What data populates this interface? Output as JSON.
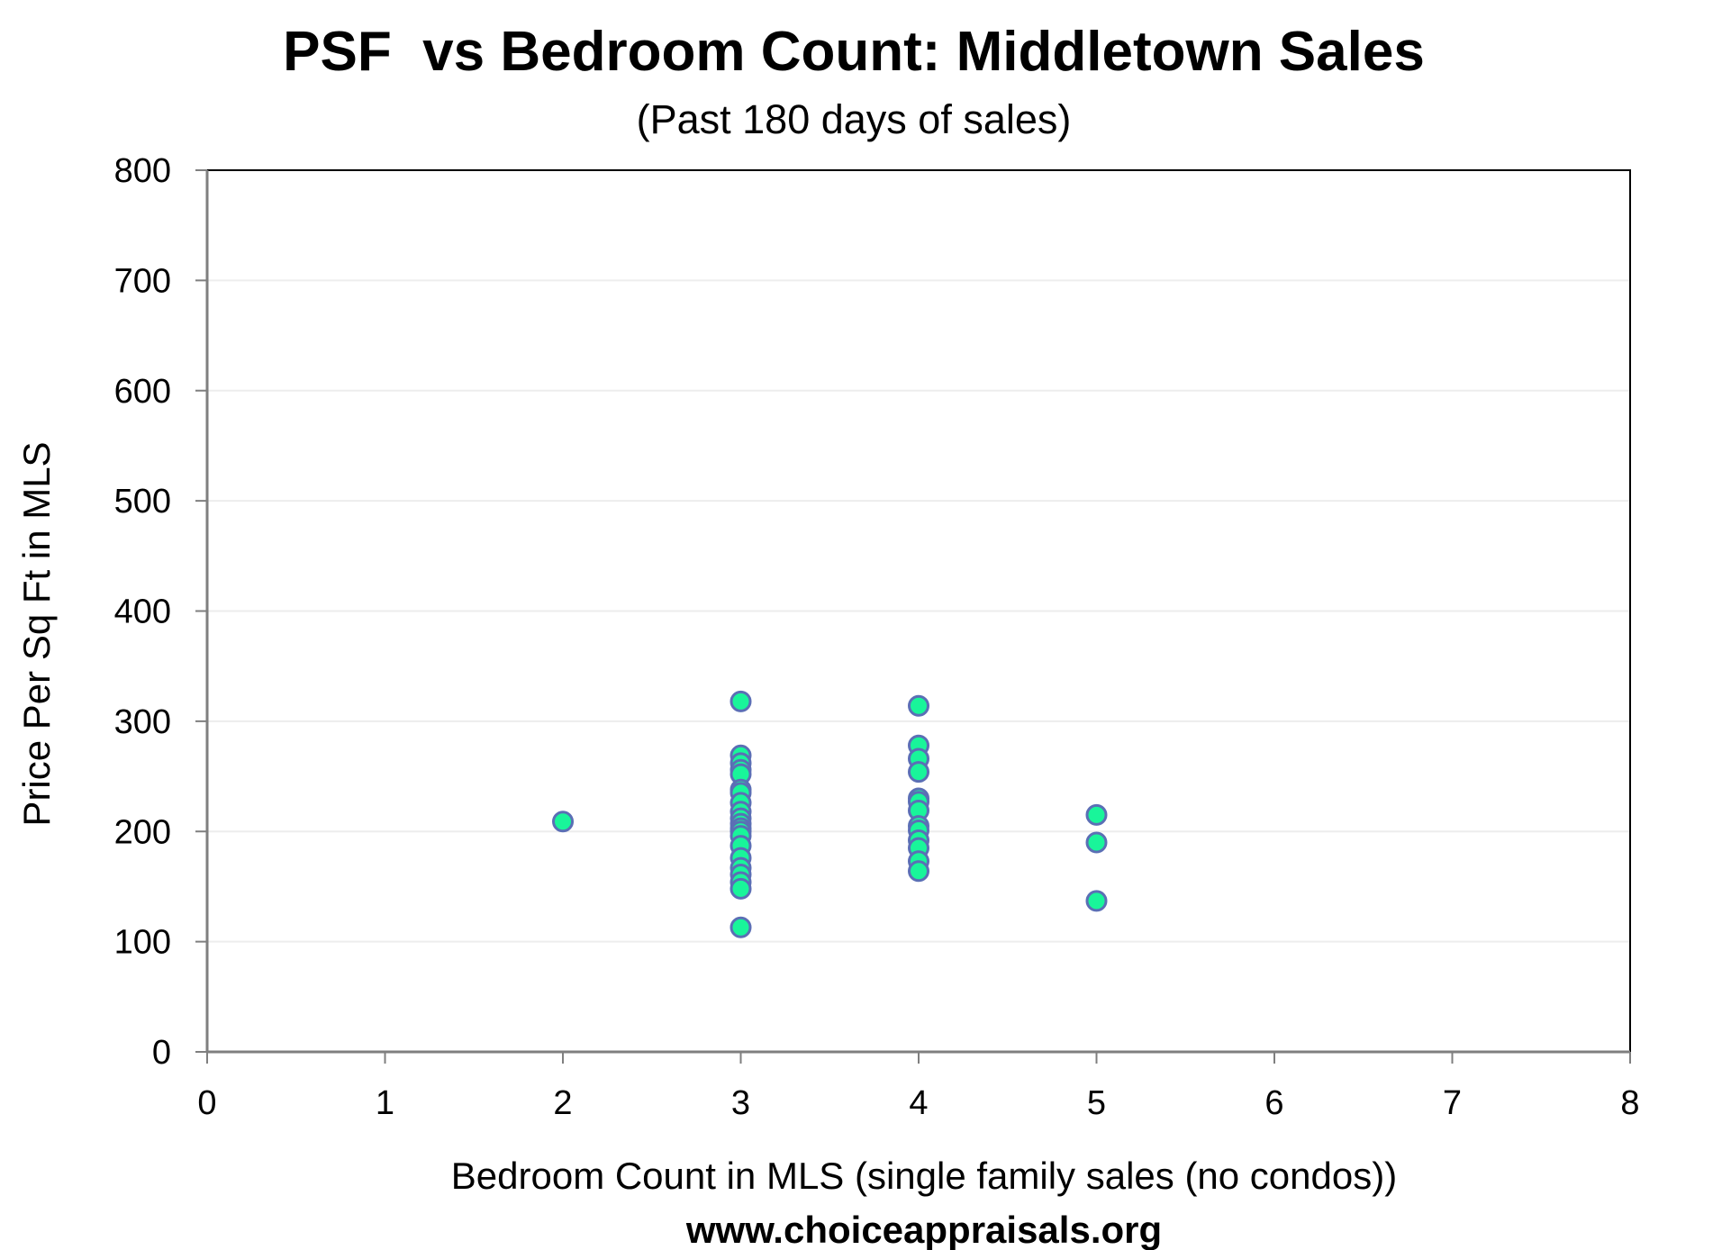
{
  "chart_data": {
    "type": "scatter",
    "title": "PSF  vs Bedroom Count: Middletown Sales",
    "subtitle": "(Past 180 days of sales)",
    "xlabel": "Bedroom Count in MLS (single family sales (no condos))",
    "ylabel": "Price Per Sq Ft in MLS",
    "footer": "www.choiceappraisals.org",
    "xlim": [
      0,
      8
    ],
    "ylim": [
      0,
      800
    ],
    "x_ticks": [
      "0",
      "1",
      "2",
      "3",
      "4",
      "5",
      "6",
      "7",
      "8"
    ],
    "y_ticks": [
      "0",
      "100",
      "200",
      "300",
      "400",
      "500",
      "600",
      "700",
      "800"
    ],
    "grid": "horizontal",
    "legend": "none",
    "marker_fill": "#19F59A",
    "marker_stroke": "#5B6FB5",
    "gridline_color": "#EDEDED",
    "points": [
      {
        "x": 2,
        "y": 209
      },
      {
        "x": 3,
        "y": 318
      },
      {
        "x": 3,
        "y": 269
      },
      {
        "x": 3,
        "y": 262
      },
      {
        "x": 3,
        "y": 256
      },
      {
        "x": 3,
        "y": 252
      },
      {
        "x": 3,
        "y": 238
      },
      {
        "x": 3,
        "y": 235
      },
      {
        "x": 3,
        "y": 226
      },
      {
        "x": 3,
        "y": 218
      },
      {
        "x": 3,
        "y": 212
      },
      {
        "x": 3,
        "y": 207
      },
      {
        "x": 3,
        "y": 203
      },
      {
        "x": 3,
        "y": 200
      },
      {
        "x": 3,
        "y": 196
      },
      {
        "x": 3,
        "y": 187
      },
      {
        "x": 3,
        "y": 176
      },
      {
        "x": 3,
        "y": 167
      },
      {
        "x": 3,
        "y": 161
      },
      {
        "x": 3,
        "y": 154
      },
      {
        "x": 3,
        "y": 148
      },
      {
        "x": 3,
        "y": 113
      },
      {
        "x": 4,
        "y": 314
      },
      {
        "x": 4,
        "y": 278
      },
      {
        "x": 4,
        "y": 266
      },
      {
        "x": 4,
        "y": 254
      },
      {
        "x": 4,
        "y": 230
      },
      {
        "x": 4,
        "y": 227
      },
      {
        "x": 4,
        "y": 219
      },
      {
        "x": 4,
        "y": 205
      },
      {
        "x": 4,
        "y": 201
      },
      {
        "x": 4,
        "y": 192
      },
      {
        "x": 4,
        "y": 185
      },
      {
        "x": 4,
        "y": 173
      },
      {
        "x": 4,
        "y": 164
      },
      {
        "x": 5,
        "y": 215
      },
      {
        "x": 5,
        "y": 190
      },
      {
        "x": 5,
        "y": 137
      }
    ]
  }
}
